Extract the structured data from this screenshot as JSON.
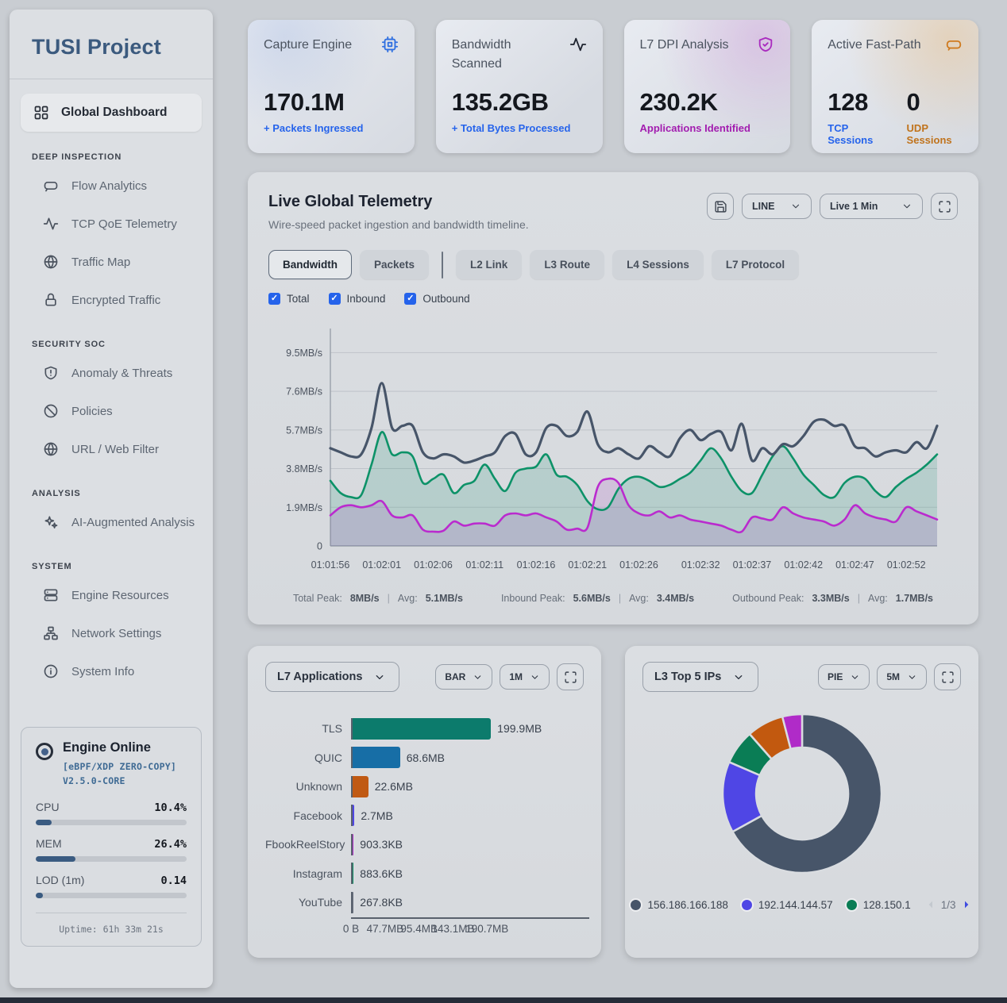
{
  "app": {
    "title": "TUSI Project"
  },
  "sidebar": {
    "primary": {
      "label": "Global Dashboard",
      "icon": "grid"
    },
    "sections": [
      {
        "heading": "DEEP INSPECTION",
        "items": [
          {
            "label": "Flow Analytics",
            "icon": "flow"
          },
          {
            "label": "TCP QoE Telemetry",
            "icon": "activity"
          },
          {
            "label": "Traffic Map",
            "icon": "globe"
          },
          {
            "label": "Encrypted Traffic",
            "icon": "lock"
          }
        ]
      },
      {
        "heading": "SECURITY SOC",
        "items": [
          {
            "label": "Anomaly & Threats",
            "icon": "shield-alert"
          },
          {
            "label": "Policies",
            "icon": "ban"
          },
          {
            "label": "URL / Web Filter",
            "icon": "globe"
          }
        ]
      },
      {
        "heading": "ANALYSIS",
        "items": [
          {
            "label": "AI-Augmented Analysis",
            "icon": "ai"
          }
        ]
      },
      {
        "heading": "SYSTEM",
        "items": [
          {
            "label": "Engine Resources",
            "icon": "server"
          },
          {
            "label": "Network Settings",
            "icon": "network"
          },
          {
            "label": "System Info",
            "icon": "info"
          }
        ]
      }
    ],
    "engine": {
      "status": "Engine Online",
      "version": "[eBPF/XDP ZERO-COPY] V2.5.0-CORE",
      "meters": [
        {
          "label": "CPU",
          "value": "10.4%",
          "pct": 10.4
        },
        {
          "label": "MEM",
          "value": "26.4%",
          "pct": 26.4
        },
        {
          "label": "LOD (1m)",
          "value": "0.14",
          "pct": 4.5
        }
      ],
      "uptime": "Uptime: 61h 33m 21s"
    }
  },
  "stat_cards": [
    {
      "title": "Capture Engine",
      "icon": "cpu",
      "icon_color": "#2f6fe0",
      "tint": "blue",
      "metrics": [
        {
          "value": "170.1M",
          "sub": "+ Packets Ingressed",
          "sub_color": "#2563eb"
        }
      ]
    },
    {
      "title": "Bandwidth Scanned",
      "icon": "activity",
      "icon_color": "#3d4document5a",
      "tint": "none",
      "metrics": [
        {
          "value": "135.2GB",
          "sub": "+ Total Bytes Processed",
          "sub_color": "#2563eb"
        }
      ]
    },
    {
      "title": "L7 DPI Analysis",
      "icon": "shield-check",
      "icon_color": "#a92bbf",
      "tint": "purple",
      "metrics": [
        {
          "value": "230.2K",
          "sub": "Applications Identified",
          "sub_color": "#a21caf"
        }
      ]
    },
    {
      "title": "Active Fast-Path",
      "icon": "router",
      "icon_color": "#cf7a1e",
      "tint": "orange",
      "metrics": [
        {
          "value": "128",
          "sub": "TCP Sessions",
          "sub_color": "#2563eb"
        },
        {
          "value": "0",
          "sub": "UDP Sessions",
          "sub_color": "#c0731c"
        }
      ]
    }
  ],
  "telemetry": {
    "title": "Live Global Telemetry",
    "subtitle": "Wire-speed packet ingestion and bandwidth timeline.",
    "chart_type_select": "LINE",
    "range_select": "Live 1 Min",
    "tab_groups": [
      [
        "Bandwidth",
        "Packets"
      ],
      [
        "L2 Link",
        "L3 Route",
        "L4 Sessions",
        "L7 Protocol"
      ]
    ],
    "active_tab": "Bandwidth",
    "legend_toggles": [
      {
        "label": "Total",
        "checked": true
      },
      {
        "label": "Inbound",
        "checked": true
      },
      {
        "label": "Outbound",
        "checked": true
      }
    ],
    "footer_stats": [
      {
        "peak_label": "Total Peak:",
        "peak": "8MB/s",
        "avg_label": "Avg:",
        "avg": "5.1MB/s"
      },
      {
        "peak_label": "Inbound Peak:",
        "peak": "5.6MB/s",
        "avg_label": "Avg:",
        "avg": "3.4MB/s"
      },
      {
        "peak_label": "Outbound Peak:",
        "peak": "3.3MB/s",
        "avg_label": "Avg:",
        "avg": "1.7MB/s"
      }
    ]
  },
  "l7_panel": {
    "selector": "L7 Applications",
    "chart_type": "BAR",
    "range": "1M"
  },
  "l3_panel": {
    "selector": "L3 Top 5 IPs",
    "chart_type": "PIE",
    "range": "5M",
    "page": "1/3"
  },
  "chart_data": [
    {
      "type": "line",
      "title": "Live Global Telemetry",
      "ylabel": "MB/s",
      "y_max": 10.45,
      "y_ticks": [
        {
          "v": 0,
          "label": "0"
        },
        {
          "v": 1.9,
          "label": "1.9MB/s"
        },
        {
          "v": 3.8,
          "label": "3.8MB/s"
        },
        {
          "v": 5.7,
          "label": "5.7MB/s"
        },
        {
          "v": 7.6,
          "label": "7.6MB/s"
        },
        {
          "v": 9.5,
          "label": "9.5MB/s"
        }
      ],
      "x_ticks": [
        "01:01:56",
        "01:02:01",
        "01:02:06",
        "01:02:11",
        "01:02:16",
        "01:02:21",
        "01:02:26",
        "01:02:32",
        "01:02:37",
        "01:02:42",
        "01:02:47",
        "01:02:52"
      ],
      "tick_indices": [
        0,
        5,
        10,
        15,
        20,
        25,
        30,
        36,
        41,
        46,
        51,
        56
      ],
      "series": [
        {
          "name": "Total",
          "color": "#475569",
          "fill": "none",
          "values": [
            4.8,
            4.6,
            4.4,
            4.5,
            5.8,
            8.0,
            5.8,
            5.9,
            5.9,
            4.6,
            4.3,
            4.5,
            4.4,
            4.1,
            4.2,
            4.4,
            4.6,
            5.4,
            5.5,
            4.5,
            4.6,
            5.8,
            5.9,
            5.4,
            5.6,
            6.6,
            5.0,
            4.6,
            4.8,
            4.5,
            4.3,
            4.9,
            4.6,
            4.4,
            5.3,
            5.7,
            5.2,
            5.5,
            5.6,
            4.7,
            6.0,
            4.2,
            4.8,
            4.5,
            5.0,
            4.9,
            5.4,
            6.1,
            6.2,
            5.9,
            5.9,
            4.9,
            4.8,
            4.4,
            4.6,
            4.7,
            4.6,
            5.1,
            4.8,
            5.9
          ]
        },
        {
          "name": "Inbound",
          "color": "#0d9268",
          "fill": "rgba(13,146,104,0.16)",
          "values": [
            3.2,
            2.6,
            2.4,
            2.5,
            4.0,
            5.6,
            4.5,
            4.6,
            4.4,
            3.1,
            3.3,
            3.5,
            2.6,
            3.0,
            3.2,
            4.0,
            3.3,
            2.7,
            3.6,
            3.8,
            3.9,
            4.5,
            3.5,
            3.4,
            3.0,
            2.2,
            1.8,
            1.9,
            2.8,
            3.3,
            3.4,
            3.2,
            2.9,
            3.0,
            3.3,
            3.6,
            4.2,
            4.8,
            4.3,
            3.4,
            2.7,
            2.6,
            3.5,
            4.4,
            4.9,
            4.3,
            3.5,
            3.0,
            2.5,
            2.4,
            3.1,
            3.4,
            3.3,
            2.7,
            2.4,
            2.9,
            3.3,
            3.6,
            4.0,
            4.5
          ]
        },
        {
          "name": "Outbound",
          "color": "#ba2bce",
          "fill": "rgba(168,60,190,0.16)",
          "values": [
            1.5,
            1.9,
            2.0,
            1.9,
            2.0,
            2.2,
            1.5,
            1.4,
            1.5,
            0.8,
            0.7,
            0.75,
            1.2,
            1.0,
            1.1,
            1.1,
            1.0,
            1.5,
            1.6,
            1.5,
            1.6,
            1.4,
            1.2,
            0.8,
            0.85,
            0.9,
            2.9,
            3.3,
            3.1,
            2.0,
            1.6,
            1.5,
            1.7,
            1.4,
            1.5,
            1.3,
            1.2,
            1.1,
            1.0,
            0.8,
            0.7,
            1.4,
            1.35,
            1.3,
            1.9,
            1.6,
            1.4,
            1.3,
            1.2,
            1.0,
            1.3,
            2.0,
            1.6,
            1.4,
            1.3,
            1.2,
            1.9,
            1.7,
            1.5,
            1.3
          ]
        }
      ]
    },
    {
      "type": "bar",
      "title": "L7 Applications",
      "orientation": "horizontal",
      "categories": [
        "TLS",
        "QUIC",
        "Unknown",
        "Facebook",
        "FbookReelStory",
        "Instagram",
        "YouTube"
      ],
      "values_mb": [
        199.9,
        68.6,
        22.6,
        2.7,
        0.882,
        0.863,
        0.262
      ],
      "value_labels": [
        "199.9MB",
        "68.6MB",
        "22.6MB",
        "2.7MB",
        "903.3KB",
        "883.6KB",
        "267.8KB"
      ],
      "bar_colors": [
        "#0c7b6c",
        "#176ea6",
        "#c05a14",
        "#4f46e5",
        "#b02bc8",
        "#0b8f62",
        "#6b7280"
      ],
      "x_ticks": [
        {
          "v": 0,
          "label": "0 B"
        },
        {
          "v": 47.7,
          "label": "47.7MB"
        },
        {
          "v": 95.4,
          "label": "95.4MB"
        },
        {
          "v": 143.1,
          "label": "143.1MB"
        },
        {
          "v": 190.7,
          "label": "190.7MB"
        }
      ],
      "x_max": 334
    },
    {
      "type": "pie",
      "title": "L3 Top 5 IPs",
      "inner_radius_ratio": 0.58,
      "slices": [
        {
          "label": "156.186.166.188",
          "pct": 67,
          "color": "#475569"
        },
        {
          "label": "192.144.144.57",
          "pct": 14.5,
          "color": "#4f46e5"
        },
        {
          "label": "128.150.1",
          "pct": 7,
          "color": "#0a7d55"
        },
        {
          "label": "",
          "pct": 7.5,
          "color": "#c2590f"
        },
        {
          "label": "",
          "pct": 4,
          "color": "#b02bc8"
        }
      ],
      "legend_visible": [
        "156.186.166.188",
        "192.144.144.57",
        "128.150.1"
      ],
      "legend_page": "1/3"
    }
  ]
}
